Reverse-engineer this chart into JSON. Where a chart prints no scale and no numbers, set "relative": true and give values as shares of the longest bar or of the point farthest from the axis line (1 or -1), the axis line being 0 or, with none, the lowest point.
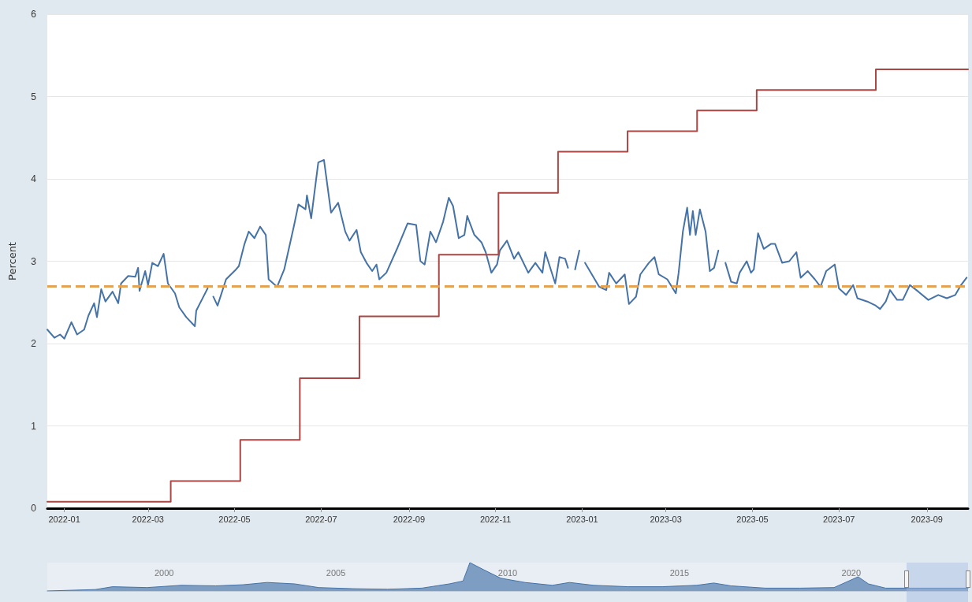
{
  "chart_data": [
    {
      "type": "line",
      "ylabel": "Percent",
      "xlim": [
        "2021-12-20",
        "2023-09-30"
      ],
      "xticks": [
        "2022-01",
        "2022-03",
        "2022-05",
        "2022-07",
        "2022-09",
        "2022-11",
        "2023-01",
        "2023-03",
        "2023-05",
        "2023-07",
        "2023-09"
      ],
      "ylim": [
        0,
        6
      ],
      "yticks": [
        0,
        1,
        2,
        3,
        4,
        5,
        6
      ],
      "grid": "y",
      "marker": "none",
      "line_style": "solid",
      "series": [
        {
          "color": "#4572a7",
          "x": [
            "2021-12-20",
            "2021-12-25",
            "2021-12-29",
            "2022-01-01",
            "2022-01-06",
            "2022-01-10",
            "2022-01-15",
            "2022-01-18",
            "2022-01-22",
            "2022-01-24",
            "2022-01-27",
            "2022-01-30",
            "2022-02-04",
            "2022-02-08",
            "2022-02-10",
            "2022-02-15",
            "2022-02-20",
            "2022-02-22",
            "2022-02-23",
            "2022-02-27",
            "2022-03-01",
            "2022-03-04",
            "2022-03-08",
            "2022-03-12",
            "2022-03-15",
            "2022-03-20",
            "2022-03-23",
            "2022-03-28",
            "2022-04-03",
            "2022-04-04",
            "2022-04-12",
            "2022-04-14",
            "2022-04-16",
            "2022-04-19",
            "2022-04-25",
            "2022-05-02",
            "2022-05-04",
            "2022-05-08",
            "2022-05-11",
            "2022-05-15",
            "2022-05-19",
            "2022-05-23",
            "2022-05-25",
            "2022-05-31",
            "2022-06-05",
            "2022-06-12",
            "2022-06-15",
            "2022-06-20",
            "2022-06-21",
            "2022-06-24",
            "2022-06-29",
            "2022-07-03",
            "2022-07-08",
            "2022-07-13",
            "2022-07-18",
            "2022-07-21",
            "2022-07-26",
            "2022-07-29",
            "2022-08-02",
            "2022-08-06",
            "2022-08-09",
            "2022-08-11",
            "2022-08-16",
            "2022-08-24",
            "2022-08-31",
            "2022-09-06",
            "2022-09-09",
            "2022-09-12",
            "2022-09-16",
            "2022-09-20",
            "2022-09-25",
            "2022-09-29",
            "2022-10-02",
            "2022-10-06",
            "2022-10-10",
            "2022-10-12",
            "2022-10-17",
            "2022-10-22",
            "2022-10-25",
            "2022-10-29",
            "2022-11-02",
            "2022-11-04",
            "2022-11-09",
            "2022-11-14",
            "2022-11-17",
            "2022-11-24",
            "2022-11-29",
            "2022-12-04",
            "2022-12-06",
            "2022-12-13",
            "2022-12-16",
            "2022-12-20",
            "2022-12-22",
            "2022-12-24",
            "2022-12-27",
            "2022-12-30",
            "2023-01-01",
            "2023-01-03",
            "2023-01-13",
            "2023-01-18",
            "2023-01-20",
            "2023-01-25",
            "2023-01-31",
            "2023-02-03",
            "2023-02-08",
            "2023-02-11",
            "2023-02-17",
            "2023-02-21",
            "2023-02-24",
            "2023-03-02",
            "2023-03-08",
            "2023-03-10",
            "2023-03-13",
            "2023-03-16",
            "2023-03-18",
            "2023-03-20",
            "2023-03-22",
            "2023-03-25",
            "2023-03-29",
            "2023-04-01",
            "2023-04-04",
            "2023-04-07",
            "2023-04-09",
            "2023-04-12",
            "2023-04-16",
            "2023-04-20",
            "2023-04-22",
            "2023-04-27",
            "2023-04-30",
            "2023-05-02",
            "2023-05-05",
            "2023-05-09",
            "2023-05-14",
            "2023-05-17",
            "2023-05-22",
            "2023-05-27",
            "2023-06-01",
            "2023-06-04",
            "2023-06-09",
            "2023-06-14",
            "2023-06-18",
            "2023-06-22",
            "2023-06-28",
            "2023-07-01",
            "2023-07-06",
            "2023-07-11",
            "2023-07-14",
            "2023-07-21",
            "2023-07-27",
            "2023-07-30",
            "2023-08-03",
            "2023-08-06",
            "2023-08-11",
            "2023-08-15",
            "2023-08-20",
            "2023-08-26",
            "2023-09-02",
            "2023-09-09",
            "2023-09-15",
            "2023-09-21",
            "2023-09-25",
            "2023-09-29"
          ],
          "values": [
            2.17,
            2.07,
            2.11,
            2.06,
            2.26,
            2.11,
            2.17,
            2.34,
            2.49,
            2.32,
            2.66,
            2.51,
            2.63,
            2.49,
            2.73,
            2.82,
            2.81,
            2.92,
            2.64,
            2.88,
            2.71,
            2.98,
            2.94,
            3.09,
            2.73,
            2.61,
            2.44,
            2.32,
            2.21,
            2.4,
            2.67,
            null,
            2.57,
            2.46,
            2.78,
            2.9,
            2.94,
            3.21,
            3.36,
            3.28,
            3.42,
            3.32,
            2.78,
            2.69,
            2.9,
            3.44,
            3.69,
            3.63,
            3.8,
            3.52,
            4.2,
            4.23,
            3.59,
            3.71,
            3.36,
            3.25,
            3.38,
            3.11,
            2.98,
            2.88,
            2.96,
            2.78,
            2.86,
            3.17,
            3.46,
            3.44,
            3.0,
            2.96,
            3.36,
            3.23,
            3.48,
            3.77,
            3.67,
            3.28,
            3.32,
            3.55,
            3.32,
            3.23,
            3.11,
            2.86,
            2.96,
            3.13,
            3.25,
            3.03,
            3.11,
            2.86,
            2.98,
            2.86,
            3.11,
            2.73,
            3.05,
            3.03,
            2.92,
            null,
            2.9,
            3.13,
            null,
            2.98,
            2.69,
            2.65,
            2.86,
            2.73,
            2.84,
            2.48,
            2.57,
            2.84,
            2.98,
            3.05,
            2.84,
            2.78,
            2.61,
            2.86,
            3.36,
            3.65,
            3.32,
            3.61,
            3.32,
            3.63,
            3.36,
            2.88,
            2.92,
            3.13,
            null,
            2.98,
            2.75,
            2.73,
            2.86,
            3.0,
            2.86,
            2.9,
            3.34,
            3.15,
            3.21,
            3.21,
            2.98,
            3.0,
            3.11,
            2.8,
            2.88,
            2.78,
            2.69,
            2.88,
            2.96,
            2.67,
            2.59,
            2.71,
            2.55,
            2.51,
            2.46,
            2.42,
            2.51,
            2.65,
            2.53,
            2.53,
            2.71,
            2.63,
            2.53,
            2.59,
            2.55,
            2.59,
            2.71,
            2.8
          ]
        },
        {
          "type": "step",
          "color": "#aa4643",
          "x": [
            "2021-12-20",
            "2022-03-17",
            "2022-05-05",
            "2022-06-16",
            "2022-07-28",
            "2022-09-22",
            "2022-11-03",
            "2022-12-15",
            "2023-02-02",
            "2023-03-23",
            "2023-05-04",
            "2023-07-27",
            "2023-09-30"
          ],
          "values": [
            0.08,
            0.33,
            0.83,
            1.58,
            2.33,
            3.08,
            3.83,
            4.33,
            4.58,
            4.83,
            5.08,
            5.33,
            5.33
          ]
        }
      ],
      "ref_lines": [
        {
          "axis": "y",
          "value": 2.7,
          "color": "#e3a353",
          "line_style": "dashed"
        }
      ]
    },
    {
      "type": "area",
      "relative": true,
      "color": "#4572a7",
      "tick_labels": "x",
      "xlim": [
        1996.6,
        2023.4
      ],
      "xticks": [
        2000,
        2005,
        2010,
        2015,
        2020
      ],
      "x": [
        1996.6,
        1998,
        1998.5,
        1999.5,
        2000.5,
        2001.5,
        2002.3,
        2003,
        2003.8,
        2004.5,
        2005.5,
        2006.5,
        2007.5,
        2008.3,
        2008.7,
        2008.9,
        2009.3,
        2009.8,
        2010.5,
        2011.3,
        2011.8,
        2012.5,
        2013.5,
        2014.5,
        2015.5,
        2016,
        2016.5,
        2017.5,
        2018.5,
        2019.5,
        2020.2,
        2020.5,
        2021,
        2022,
        2023.4
      ],
      "values": [
        0,
        0.05,
        0.15,
        0.12,
        0.2,
        0.18,
        0.22,
        0.3,
        0.25,
        0.12,
        0.08,
        0.06,
        0.1,
        0.25,
        0.35,
        1,
        0.75,
        0.45,
        0.3,
        0.2,
        0.3,
        0.2,
        0.15,
        0.15,
        0.2,
        0.28,
        0.18,
        0.1,
        0.1,
        0.12,
        0.5,
        0.25,
        0.1,
        0.1,
        0.1
      ]
    }
  ]
}
